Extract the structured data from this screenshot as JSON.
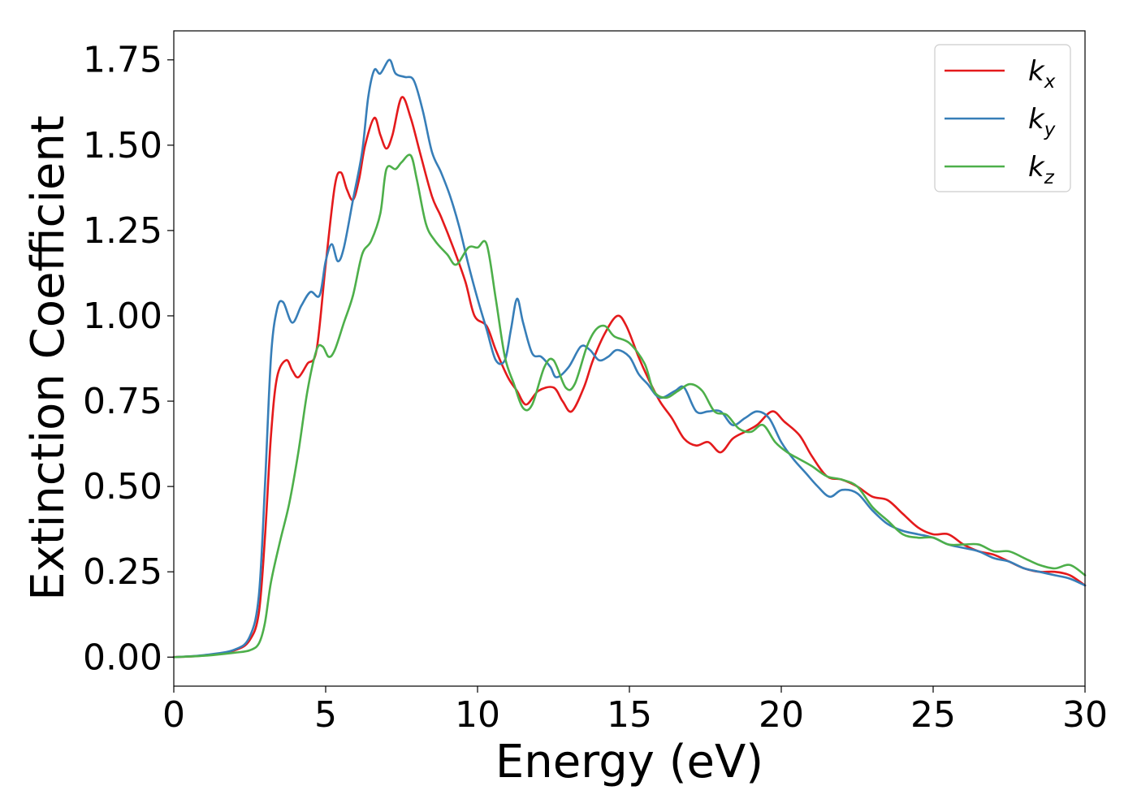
{
  "chart_data": {
    "type": "line",
    "title": "",
    "xlabel": "Energy (eV)",
    "ylabel": "Extinction Coefficient",
    "xlim": [
      0,
      30
    ],
    "ylim": [
      -0.085,
      1.835
    ],
    "xticks": [
      0,
      5,
      10,
      15,
      20,
      25,
      30
    ],
    "xtick_labels": [
      "0",
      "5",
      "10",
      "15",
      "20",
      "25",
      "30"
    ],
    "yticks": [
      0.0,
      0.25,
      0.5,
      0.75,
      1.0,
      1.25,
      1.5,
      1.75
    ],
    "ytick_labels": [
      "0.00",
      "0.25",
      "0.50",
      "0.75",
      "1.00",
      "1.25",
      "1.50",
      "1.75"
    ],
    "grid": false,
    "legend_position": "top-right",
    "series": [
      {
        "name": "k",
        "subscript": "x",
        "color": "#e41a1c",
        "points": [
          [
            0,
            0.0
          ],
          [
            1,
            0.005
          ],
          [
            2,
            0.02
          ],
          [
            2.5,
            0.05
          ],
          [
            2.8,
            0.13
          ],
          [
            3.0,
            0.35
          ],
          [
            3.2,
            0.65
          ],
          [
            3.4,
            0.82
          ],
          [
            3.7,
            0.87
          ],
          [
            3.9,
            0.84
          ],
          [
            4.1,
            0.82
          ],
          [
            4.4,
            0.86
          ],
          [
            4.7,
            0.9
          ],
          [
            5.0,
            1.15
          ],
          [
            5.3,
            1.38
          ],
          [
            5.5,
            1.42
          ],
          [
            5.7,
            1.37
          ],
          [
            5.9,
            1.34
          ],
          [
            6.1,
            1.4
          ],
          [
            6.3,
            1.5
          ],
          [
            6.6,
            1.58
          ],
          [
            6.8,
            1.53
          ],
          [
            7.0,
            1.49
          ],
          [
            7.2,
            1.53
          ],
          [
            7.5,
            1.64
          ],
          [
            7.8,
            1.58
          ],
          [
            8.1,
            1.48
          ],
          [
            8.5,
            1.35
          ],
          [
            8.8,
            1.29
          ],
          [
            9.2,
            1.2
          ],
          [
            9.6,
            1.1
          ],
          [
            9.9,
            1.0
          ],
          [
            10.3,
            0.97
          ],
          [
            10.6,
            0.9
          ],
          [
            11.0,
            0.82
          ],
          [
            11.3,
            0.78
          ],
          [
            11.6,
            0.74
          ],
          [
            12.0,
            0.78
          ],
          [
            12.5,
            0.79
          ],
          [
            12.8,
            0.75
          ],
          [
            13.1,
            0.72
          ],
          [
            13.5,
            0.79
          ],
          [
            13.8,
            0.87
          ],
          [
            14.2,
            0.95
          ],
          [
            14.6,
            1.0
          ],
          [
            14.9,
            0.97
          ],
          [
            15.3,
            0.88
          ],
          [
            15.6,
            0.82
          ],
          [
            16.0,
            0.75
          ],
          [
            16.4,
            0.7
          ],
          [
            16.8,
            0.64
          ],
          [
            17.2,
            0.62
          ],
          [
            17.6,
            0.63
          ],
          [
            18.0,
            0.6
          ],
          [
            18.4,
            0.64
          ],
          [
            18.8,
            0.66
          ],
          [
            19.2,
            0.68
          ],
          [
            19.7,
            0.72
          ],
          [
            20.1,
            0.69
          ],
          [
            20.6,
            0.65
          ],
          [
            21.0,
            0.59
          ],
          [
            21.5,
            0.53
          ],
          [
            22.0,
            0.52
          ],
          [
            22.5,
            0.5
          ],
          [
            23.0,
            0.47
          ],
          [
            23.5,
            0.46
          ],
          [
            24.0,
            0.42
          ],
          [
            24.5,
            0.38
          ],
          [
            25.0,
            0.36
          ],
          [
            25.5,
            0.36
          ],
          [
            26.0,
            0.33
          ],
          [
            26.5,
            0.31
          ],
          [
            27.0,
            0.3
          ],
          [
            27.5,
            0.28
          ],
          [
            28.0,
            0.26
          ],
          [
            28.5,
            0.25
          ],
          [
            29.0,
            0.25
          ],
          [
            29.5,
            0.24
          ],
          [
            30.0,
            0.21
          ]
        ]
      },
      {
        "name": "k",
        "subscript": "y",
        "color": "#377eb8",
        "points": [
          [
            0,
            0.0
          ],
          [
            1,
            0.006
          ],
          [
            2,
            0.022
          ],
          [
            2.5,
            0.06
          ],
          [
            2.8,
            0.18
          ],
          [
            3.0,
            0.5
          ],
          [
            3.2,
            0.88
          ],
          [
            3.4,
            1.02
          ],
          [
            3.6,
            1.04
          ],
          [
            3.9,
            0.98
          ],
          [
            4.2,
            1.03
          ],
          [
            4.5,
            1.07
          ],
          [
            4.8,
            1.06
          ],
          [
            5.0,
            1.16
          ],
          [
            5.2,
            1.21
          ],
          [
            5.4,
            1.16
          ],
          [
            5.6,
            1.2
          ],
          [
            5.9,
            1.34
          ],
          [
            6.2,
            1.48
          ],
          [
            6.4,
            1.64
          ],
          [
            6.6,
            1.72
          ],
          [
            6.8,
            1.71
          ],
          [
            7.1,
            1.75
          ],
          [
            7.3,
            1.71
          ],
          [
            7.6,
            1.7
          ],
          [
            7.9,
            1.69
          ],
          [
            8.2,
            1.6
          ],
          [
            8.5,
            1.48
          ],
          [
            8.8,
            1.42
          ],
          [
            9.1,
            1.35
          ],
          [
            9.4,
            1.26
          ],
          [
            9.7,
            1.15
          ],
          [
            10.0,
            1.05
          ],
          [
            10.3,
            0.96
          ],
          [
            10.6,
            0.87
          ],
          [
            10.9,
            0.87
          ],
          [
            11.1,
            0.96
          ],
          [
            11.3,
            1.05
          ],
          [
            11.5,
            0.98
          ],
          [
            11.8,
            0.89
          ],
          [
            12.1,
            0.88
          ],
          [
            12.4,
            0.85
          ],
          [
            12.6,
            0.82
          ],
          [
            13.0,
            0.85
          ],
          [
            13.4,
            0.91
          ],
          [
            13.7,
            0.9
          ],
          [
            14.0,
            0.87
          ],
          [
            14.3,
            0.88
          ],
          [
            14.6,
            0.9
          ],
          [
            15.0,
            0.88
          ],
          [
            15.3,
            0.83
          ],
          [
            15.6,
            0.8
          ],
          [
            16.0,
            0.76
          ],
          [
            16.5,
            0.78
          ],
          [
            16.8,
            0.79
          ],
          [
            17.2,
            0.72
          ],
          [
            17.6,
            0.72
          ],
          [
            18.0,
            0.72
          ],
          [
            18.4,
            0.68
          ],
          [
            18.8,
            0.7
          ],
          [
            19.2,
            0.72
          ],
          [
            19.6,
            0.7
          ],
          [
            20.0,
            0.63
          ],
          [
            20.4,
            0.58
          ],
          [
            20.8,
            0.54
          ],
          [
            21.2,
            0.5
          ],
          [
            21.6,
            0.47
          ],
          [
            22.0,
            0.49
          ],
          [
            22.5,
            0.48
          ],
          [
            23.0,
            0.43
          ],
          [
            23.5,
            0.39
          ],
          [
            24.0,
            0.37
          ],
          [
            24.5,
            0.36
          ],
          [
            25.0,
            0.35
          ],
          [
            25.5,
            0.33
          ],
          [
            26.0,
            0.32
          ],
          [
            26.5,
            0.31
          ],
          [
            27.0,
            0.29
          ],
          [
            27.5,
            0.28
          ],
          [
            28.0,
            0.26
          ],
          [
            28.5,
            0.25
          ],
          [
            29.0,
            0.24
          ],
          [
            29.5,
            0.23
          ],
          [
            30.0,
            0.21
          ]
        ]
      },
      {
        "name": "k",
        "subscript": "z",
        "color": "#4daf4a",
        "points": [
          [
            0,
            0.0
          ],
          [
            1,
            0.004
          ],
          [
            2,
            0.013
          ],
          [
            2.5,
            0.02
          ],
          [
            2.8,
            0.04
          ],
          [
            3.0,
            0.1
          ],
          [
            3.2,
            0.22
          ],
          [
            3.5,
            0.34
          ],
          [
            3.8,
            0.45
          ],
          [
            4.1,
            0.6
          ],
          [
            4.4,
            0.78
          ],
          [
            4.7,
            0.9
          ],
          [
            4.9,
            0.91
          ],
          [
            5.1,
            0.88
          ],
          [
            5.3,
            0.9
          ],
          [
            5.6,
            0.98
          ],
          [
            5.9,
            1.06
          ],
          [
            6.2,
            1.18
          ],
          [
            6.5,
            1.22
          ],
          [
            6.8,
            1.3
          ],
          [
            7.0,
            1.43
          ],
          [
            7.3,
            1.43
          ],
          [
            7.5,
            1.45
          ],
          [
            7.8,
            1.47
          ],
          [
            8.0,
            1.4
          ],
          [
            8.3,
            1.27
          ],
          [
            8.6,
            1.22
          ],
          [
            9.0,
            1.18
          ],
          [
            9.3,
            1.15
          ],
          [
            9.7,
            1.2
          ],
          [
            10.0,
            1.2
          ],
          [
            10.3,
            1.21
          ],
          [
            10.6,
            1.05
          ],
          [
            10.9,
            0.88
          ],
          [
            11.2,
            0.8
          ],
          [
            11.5,
            0.73
          ],
          [
            11.8,
            0.74
          ],
          [
            12.2,
            0.85
          ],
          [
            12.5,
            0.87
          ],
          [
            12.9,
            0.79
          ],
          [
            13.2,
            0.8
          ],
          [
            13.6,
            0.91
          ],
          [
            13.9,
            0.96
          ],
          [
            14.2,
            0.97
          ],
          [
            14.5,
            0.94
          ],
          [
            15.0,
            0.92
          ],
          [
            15.5,
            0.86
          ],
          [
            15.8,
            0.78
          ],
          [
            16.2,
            0.76
          ],
          [
            16.6,
            0.78
          ],
          [
            17.0,
            0.8
          ],
          [
            17.4,
            0.78
          ],
          [
            17.8,
            0.72
          ],
          [
            18.2,
            0.71
          ],
          [
            18.6,
            0.67
          ],
          [
            19.0,
            0.66
          ],
          [
            19.4,
            0.68
          ],
          [
            19.8,
            0.63
          ],
          [
            20.2,
            0.6
          ],
          [
            20.6,
            0.58
          ],
          [
            21.0,
            0.56
          ],
          [
            21.5,
            0.53
          ],
          [
            22.0,
            0.52
          ],
          [
            22.5,
            0.5
          ],
          [
            23.0,
            0.44
          ],
          [
            23.5,
            0.4
          ],
          [
            24.0,
            0.36
          ],
          [
            24.5,
            0.35
          ],
          [
            25.0,
            0.35
          ],
          [
            25.5,
            0.33
          ],
          [
            26.0,
            0.33
          ],
          [
            26.5,
            0.33
          ],
          [
            27.0,
            0.31
          ],
          [
            27.5,
            0.31
          ],
          [
            28.0,
            0.29
          ],
          [
            28.5,
            0.27
          ],
          [
            29.0,
            0.26
          ],
          [
            29.5,
            0.27
          ],
          [
            30.0,
            0.24
          ]
        ]
      }
    ]
  }
}
